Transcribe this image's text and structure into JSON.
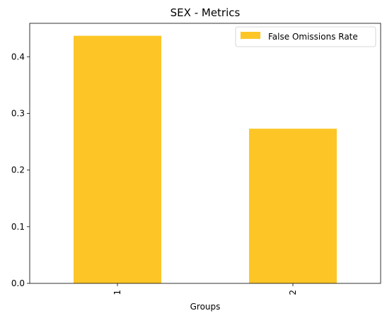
{
  "chart_data": {
    "type": "bar",
    "title": "SEX - Metrics",
    "xlabel": "Groups",
    "ylabel": "",
    "categories": [
      "1",
      "2"
    ],
    "series": [
      {
        "name": "False Omissions Rate",
        "values": [
          0.437,
          0.273
        ],
        "color": "#FDC626"
      }
    ],
    "ylim": [
      0,
      0.459
    ],
    "yticks": [
      0.0,
      0.1,
      0.2,
      0.3,
      0.4
    ],
    "ytick_labels": [
      "0.0",
      "0.1",
      "0.2",
      "0.3",
      "0.4"
    ],
    "grid": false,
    "legend_position": "top-right"
  }
}
